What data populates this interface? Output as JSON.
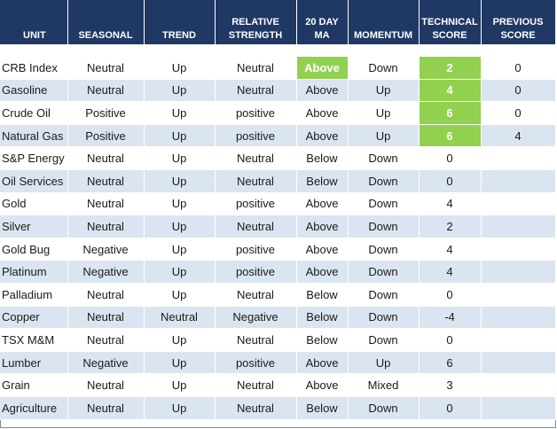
{
  "headers": {
    "unit": "UNIT",
    "seasonal": "SEASONAL",
    "trend": "TREND",
    "relative_strength": "RELATIVE STRENGTH",
    "ma20": "20 DAY MA",
    "momentum": "MOMENTUM",
    "technical_score": "TECHNICAL SCORE",
    "previous_score": "PREVIOUS SCORE"
  },
  "colors": {
    "header_bg": "#1f3864",
    "row_shade": "#dbe5f1",
    "highlight_green": "#92d050"
  },
  "rows": [
    {
      "unit": "CRB Index",
      "seasonal": "Neutral",
      "trend": "Up",
      "rs": "Neutral",
      "ma": "Above",
      "momentum": "Down",
      "score": "2",
      "prev": "0"
    },
    {
      "unit": "Gasoline",
      "seasonal": "Neutral",
      "trend": "Up",
      "rs": "Neutral",
      "ma": "Above",
      "momentum": "Up",
      "score": "4",
      "prev": "0"
    },
    {
      "unit": "Crude Oil",
      "seasonal": "Positive",
      "trend": "Up",
      "rs": "positive",
      "ma": "Above",
      "momentum": "Up",
      "score": "6",
      "prev": "0"
    },
    {
      "unit": "Natural Gas",
      "seasonal": "Positive",
      "trend": "Up",
      "rs": "positive",
      "ma": "Above",
      "momentum": "Up",
      "score": "6",
      "prev": "4"
    },
    {
      "unit": "S&P Energy",
      "seasonal": "Neutral",
      "trend": "Up",
      "rs": "Neutral",
      "ma": "Below",
      "momentum": "Down",
      "score": "0",
      "prev": ""
    },
    {
      "unit": "Oil Services",
      "seasonal": "Neutral",
      "trend": "Up",
      "rs": "Neutral",
      "ma": "Below",
      "momentum": "Down",
      "score": "0",
      "prev": ""
    },
    {
      "unit": "Gold",
      "seasonal": "Neutral",
      "trend": "Up",
      "rs": "positive",
      "ma": "Above",
      "momentum": "Down",
      "score": "4",
      "prev": ""
    },
    {
      "unit": "Silver",
      "seasonal": "Neutral",
      "trend": "Up",
      "rs": "Neutral",
      "ma": "Above",
      "momentum": "Down",
      "score": "2",
      "prev": ""
    },
    {
      "unit": "Gold Bug",
      "seasonal": "Negative",
      "trend": "Up",
      "rs": "positive",
      "ma": "Above",
      "momentum": "Down",
      "score": "4",
      "prev": ""
    },
    {
      "unit": "Platinum",
      "seasonal": "Negative",
      "trend": "Up",
      "rs": "positive",
      "ma": "Above",
      "momentum": "Down",
      "score": "4",
      "prev": ""
    },
    {
      "unit": "Palladium",
      "seasonal": "Neutral",
      "trend": "Up",
      "rs": "Neutral",
      "ma": "Below",
      "momentum": "Down",
      "score": "0",
      "prev": ""
    },
    {
      "unit": "Copper",
      "seasonal": "Neutral",
      "trend": "Neutral",
      "rs": "Negative",
      "ma": "Below",
      "momentum": "Down",
      "score": "-4",
      "prev": ""
    },
    {
      "unit": "TSX M&M",
      "seasonal": "Neutral",
      "trend": "Up",
      "rs": "Neutral",
      "ma": "Below",
      "momentum": "Down",
      "score": "0",
      "prev": ""
    },
    {
      "unit": "Lumber",
      "seasonal": "Negative",
      "trend": "Up",
      "rs": "positive",
      "ma": "Above",
      "momentum": "Up",
      "score": "6",
      "prev": ""
    },
    {
      "unit": "Grain",
      "seasonal": "Neutral",
      "trend": "Up",
      "rs": "Neutral",
      "ma": "Above",
      "momentum": "Mixed",
      "score": "3",
      "prev": ""
    },
    {
      "unit": "Agriculture",
      "seasonal": "Neutral",
      "trend": "Up",
      "rs": "Neutral",
      "ma": "Below",
      "momentum": "Down",
      "score": "0",
      "prev": ""
    }
  ]
}
